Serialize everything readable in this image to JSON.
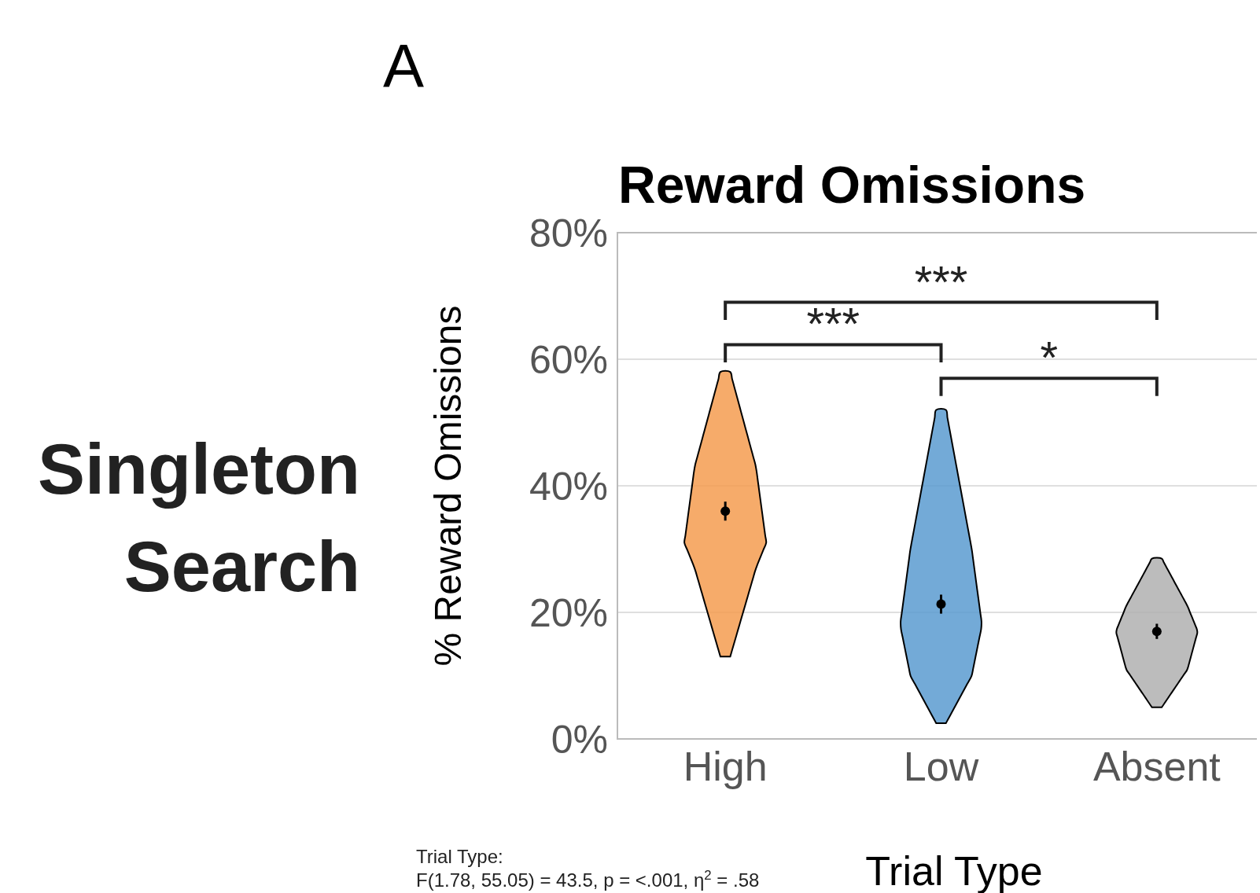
{
  "chart_data": {
    "type": "scatter",
    "title": "Reward Omissions",
    "xlabel": "Trial Type",
    "ylabel": "% Reward Omissions",
    "categories": [
      "High",
      "Low",
      "Absent"
    ],
    "series": [
      {
        "color": "#000000",
        "x": [
          "High",
          "Low",
          "Absent"
        ],
        "values": [
          36,
          21.3,
          17
        ],
        "errors": [
          1.5,
          1.5,
          1.2
        ]
      }
    ],
    "ylim": [
      0,
      80
    ],
    "yticks": [
      {
        "value": 0,
        "label": "0%"
      },
      {
        "value": 20,
        "label": "20%"
      },
      {
        "value": 40,
        "label": "40%"
      },
      {
        "value": 60,
        "label": "60%"
      },
      {
        "value": 80,
        "label": "80%"
      }
    ],
    "grid": "y",
    "marker": "circle",
    "annotations": [
      "A",
      "Singleton Search",
      "***",
      "***",
      "*",
      "Trial Type:",
      "F(1.78, 55.05) = 43.5, p = <.001, η$^{2}$ = .58"
    ]
  }
}
